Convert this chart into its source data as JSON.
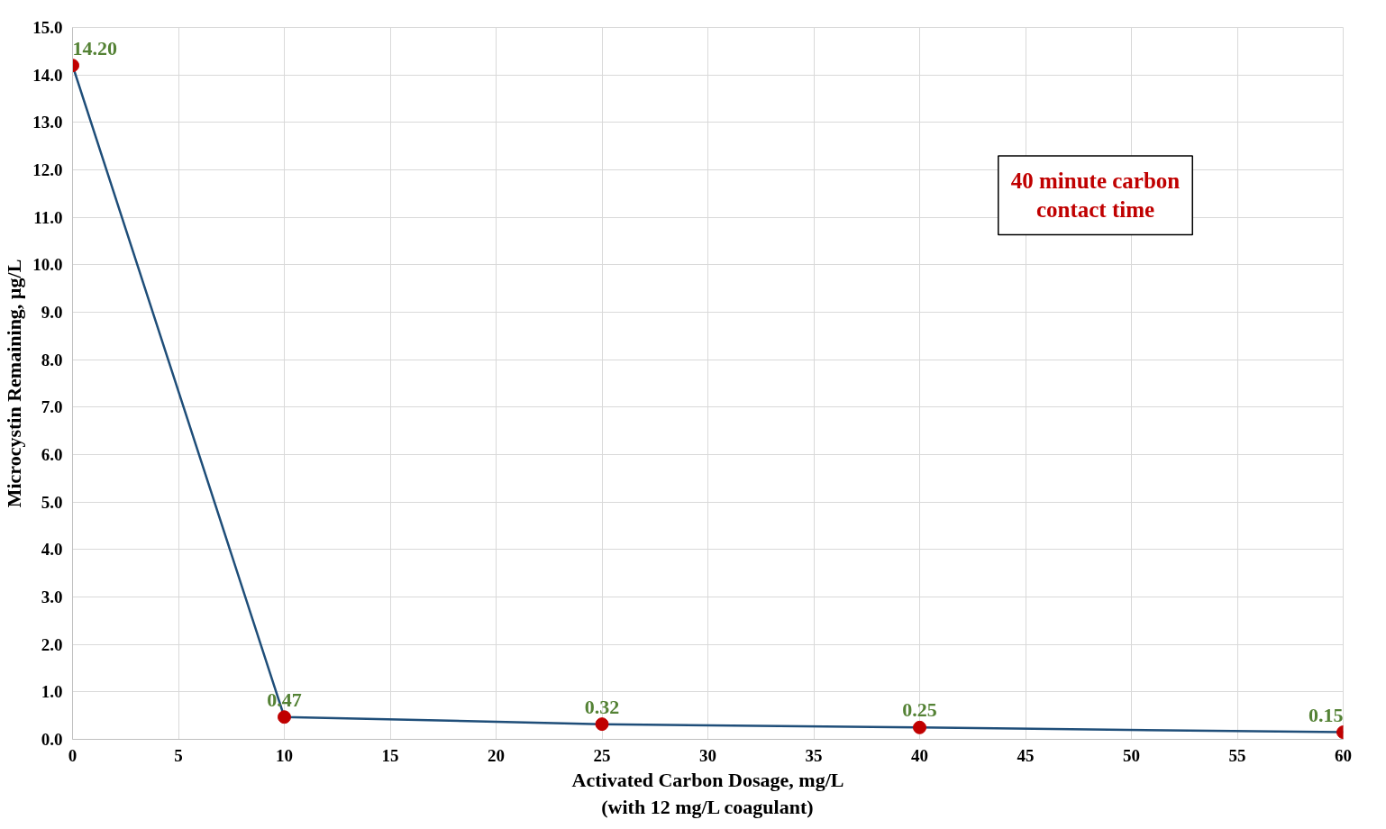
{
  "chart_data": {
    "type": "line",
    "xlabel": "Activated Carbon Dosage, mg/L\n(with 12 mg/L coagulant)",
    "ylabel": "Microcystin Remaining, µg/L",
    "x": [
      0,
      10,
      25,
      40,
      60
    ],
    "series": [
      {
        "color": "#1f4e79",
        "colors": [
          "#c00000",
          "#c00000",
          "#c00000",
          "#c00000",
          "#c00000"
        ],
        "values": [
          14.2,
          0.47,
          0.32,
          0.25,
          0.15
        ],
        "value_labels": [
          "14.20",
          "0.47",
          "0.32",
          "0.25",
          "0.15"
        ]
      }
    ],
    "xlim": [
      0,
      60
    ],
    "xticks": [
      0,
      5,
      10,
      15,
      20,
      25,
      30,
      35,
      40,
      45,
      50,
      55,
      60
    ],
    "ylim": [
      0,
      15
    ],
    "yticks": [
      {
        "value": 0,
        "label": "0.0"
      },
      {
        "value": 1,
        "label": "1.0"
      },
      {
        "value": 2,
        "label": "2.0"
      },
      {
        "value": 3,
        "label": "3.0"
      },
      {
        "value": 4,
        "label": "4.0"
      },
      {
        "value": 5,
        "label": "5.0"
      },
      {
        "value": 6,
        "label": "6.0"
      },
      {
        "value": 7,
        "label": "7.0"
      },
      {
        "value": 8,
        "label": "8.0"
      },
      {
        "value": 9,
        "label": "9.0"
      },
      {
        "value": 10,
        "label": "10.0"
      },
      {
        "value": 11,
        "label": "11.0"
      },
      {
        "value": 12,
        "label": "12.0"
      },
      {
        "value": 13,
        "label": "13.0"
      },
      {
        "value": 14,
        "label": "14.0"
      },
      {
        "value": 15,
        "label": "15.0"
      }
    ],
    "annotations": [
      "40 minute carbon contact time"
    ],
    "grid": true,
    "marker": "circle",
    "line_style": "solid"
  }
}
